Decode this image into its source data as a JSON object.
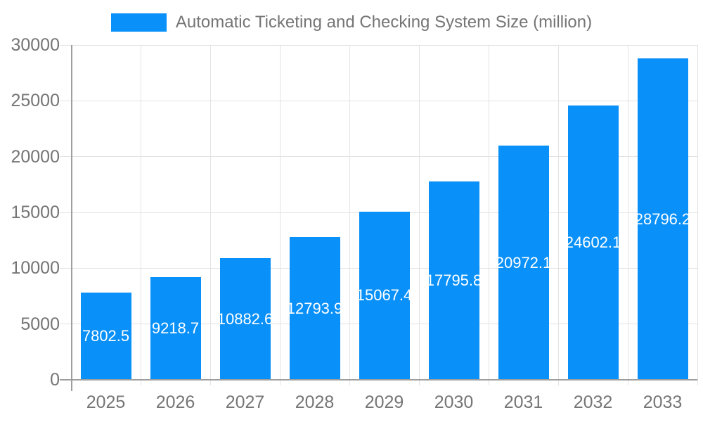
{
  "legend": {
    "label": "Automatic Ticketing and Checking System Size (million)"
  },
  "chart_data": {
    "type": "bar",
    "title": "Automatic Ticketing and Checking System Size (million)",
    "categories": [
      "2025",
      "2026",
      "2027",
      "2028",
      "2029",
      "2030",
      "2031",
      "2032",
      "2033"
    ],
    "values": [
      7802.5,
      9218.7,
      10882.6,
      12793.9,
      15067.4,
      17795.8,
      20972.1,
      24602.1,
      28796.2
    ],
    "bar_labels": [
      "7802.5",
      "9218.7",
      "10882.6",
      "12793.9",
      "15067.4",
      "17795.8",
      "20972.1",
      "24602.1",
      "28796.2"
    ],
    "xlabel": "",
    "ylabel": "",
    "ylim": [
      0,
      30000
    ],
    "ytick_step": 5000,
    "ytick_labels": [
      "0",
      "5000",
      "10000",
      "15000",
      "20000",
      "25000",
      "30000"
    ],
    "grid": true,
    "legend_position": "top",
    "colors": {
      "bar": "#0990f9",
      "grid": "#e3e3e3",
      "axis": "#9e9e9e",
      "tick_label": "#757575",
      "legend_label": "#757575",
      "bar_label": "#ffffff",
      "background": "#ffffff"
    }
  }
}
